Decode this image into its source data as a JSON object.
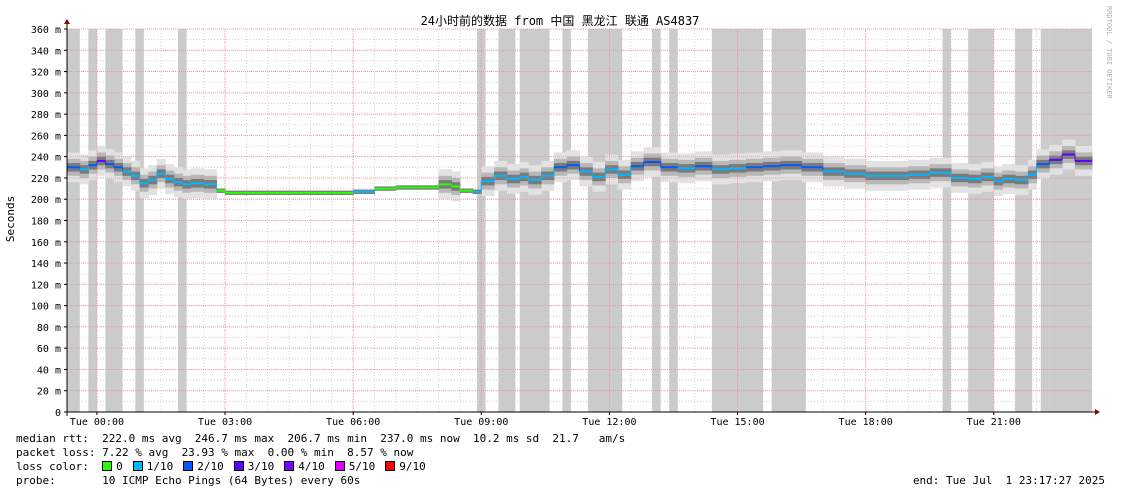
{
  "chart_data": {
    "type": "line",
    "title": "24小时前的数据 from 中国 黑龙江 联通 AS4837",
    "ylabel": "Seconds",
    "watermark": "RRDTOOL / TOBI OETIKER",
    "ylim": [
      0,
      360
    ],
    "y_unit": "ms",
    "y_ticks": [
      {
        "value": 0,
        "label": "0"
      },
      {
        "value": 20,
        "label": "20 m"
      },
      {
        "value": 40,
        "label": "40 m"
      },
      {
        "value": 60,
        "label": "60 m"
      },
      {
        "value": 80,
        "label": "80 m"
      },
      {
        "value": 100,
        "label": "100 m"
      },
      {
        "value": 120,
        "label": "120 m"
      },
      {
        "value": 140,
        "label": "140 m"
      },
      {
        "value": 160,
        "label": "160 m"
      },
      {
        "value": 180,
        "label": "180 m"
      },
      {
        "value": 200,
        "label": "200 m"
      },
      {
        "value": 220,
        "label": "220 m"
      },
      {
        "value": 240,
        "label": "240 m"
      },
      {
        "value": 260,
        "label": "260 m"
      },
      {
        "value": 280,
        "label": "280 m"
      },
      {
        "value": 300,
        "label": "300 m"
      },
      {
        "value": 320,
        "label": "320 m"
      },
      {
        "value": 340,
        "label": "340 m"
      },
      {
        "value": 360,
        "label": "360 m"
      }
    ],
    "x_unit": "hours",
    "xlim": [
      23.3,
      47.3
    ],
    "x_ticks": [
      {
        "value": 24,
        "label": "Tue 00:00"
      },
      {
        "value": 27,
        "label": "Tue 03:00"
      },
      {
        "value": 30,
        "label": "Tue 06:00"
      },
      {
        "value": 33,
        "label": "Tue 09:00"
      },
      {
        "value": 36,
        "label": "Tue 12:00"
      },
      {
        "value": 39,
        "label": "Tue 15:00"
      },
      {
        "value": 42,
        "label": "Tue 18:00"
      },
      {
        "value": 45,
        "label": "Tue 21:00"
      }
    ],
    "loss_levels": [
      {
        "label": "0",
        "color": "#26ff00"
      },
      {
        "label": "1/10",
        "color": "#00b8ff"
      },
      {
        "label": "2/10",
        "color": "#0059ff"
      },
      {
        "label": "3/10",
        "color": "#5e00ff"
      },
      {
        "label": "4/10",
        "color": "#7e00ff"
      },
      {
        "label": "5/10",
        "color": "#dd00ff"
      },
      {
        "label": "9/10",
        "color": "#ff0000"
      }
    ],
    "loss_periods": [
      [
        23.3,
        23.6
      ],
      [
        23.8,
        24.0
      ],
      [
        24.2,
        24.6
      ],
      [
        24.9,
        25.1
      ],
      [
        25.9,
        26.1
      ],
      [
        32.9,
        33.1
      ],
      [
        33.4,
        33.8
      ],
      [
        33.9,
        34.6
      ],
      [
        34.9,
        35.1
      ],
      [
        35.5,
        36.3
      ],
      [
        37.0,
        37.2
      ],
      [
        37.4,
        37.6
      ],
      [
        38.4,
        39.6
      ],
      [
        39.8,
        40.6
      ],
      [
        43.8,
        44.0
      ],
      [
        44.4,
        45.0
      ],
      [
        45.5,
        45.9
      ],
      [
        46.1,
        46.3
      ],
      [
        46.3,
        47.3
      ]
    ],
    "series": [
      {
        "name": "median",
        "x": [
          23.3,
          23.6,
          23.8,
          24.0,
          24.2,
          24.4,
          24.6,
          24.8,
          25.0,
          25.2,
          25.4,
          25.6,
          25.8,
          26.0,
          26.2,
          26.5,
          26.8,
          27.0,
          28.0,
          29.0,
          29.5,
          30.0,
          30.5,
          31.0,
          31.5,
          32.0,
          32.3,
          32.5,
          32.8,
          33.0,
          33.3,
          33.6,
          33.9,
          34.1,
          34.4,
          34.7,
          35.0,
          35.3,
          35.6,
          35.9,
          36.2,
          36.5,
          36.8,
          37.2,
          37.6,
          38.0,
          38.4,
          38.8,
          39.2,
          39.6,
          40.0,
          40.5,
          41.0,
          41.5,
          42.0,
          42.5,
          43.0,
          43.5,
          44.0,
          44.4,
          44.7,
          45.0,
          45.2,
          45.5,
          45.8,
          46.0,
          46.3,
          46.6,
          46.9,
          47.3
        ],
        "values": [
          230,
          228,
          232,
          236,
          233,
          230,
          226,
          222,
          215,
          218,
          224,
          219,
          216,
          214,
          215,
          214,
          208,
          206,
          206,
          206,
          206,
          207,
          210,
          211,
          211,
          214,
          212,
          208,
          207,
          217,
          222,
          219,
          221,
          218,
          222,
          230,
          232,
          226,
          221,
          228,
          223,
          231,
          235,
          230,
          229,
          231,
          228,
          229,
          230,
          231,
          232,
          230,
          226,
          224,
          222,
          222,
          223,
          225,
          220,
          219,
          221,
          217,
          219,
          218,
          223,
          233,
          237,
          242,
          236,
          234
        ],
        "color": "#00b8ff"
      }
    ]
  },
  "legend": {
    "median_rtt": "median rtt:  222.0 ms avg  246.7 ms max  206.7 ms min  237.0 ms now  10.2 ms sd  21.7   am/s",
    "packet_loss": "packet loss: 7.22 % avg  23.93 % max  0.00 % min  8.57 % now",
    "loss_color_label": "loss color:",
    "probe": "probe:       10 ICMP Echo Pings (64 Bytes) every 60s",
    "end": "end: Tue Jul  1 23:17:27 2025"
  }
}
